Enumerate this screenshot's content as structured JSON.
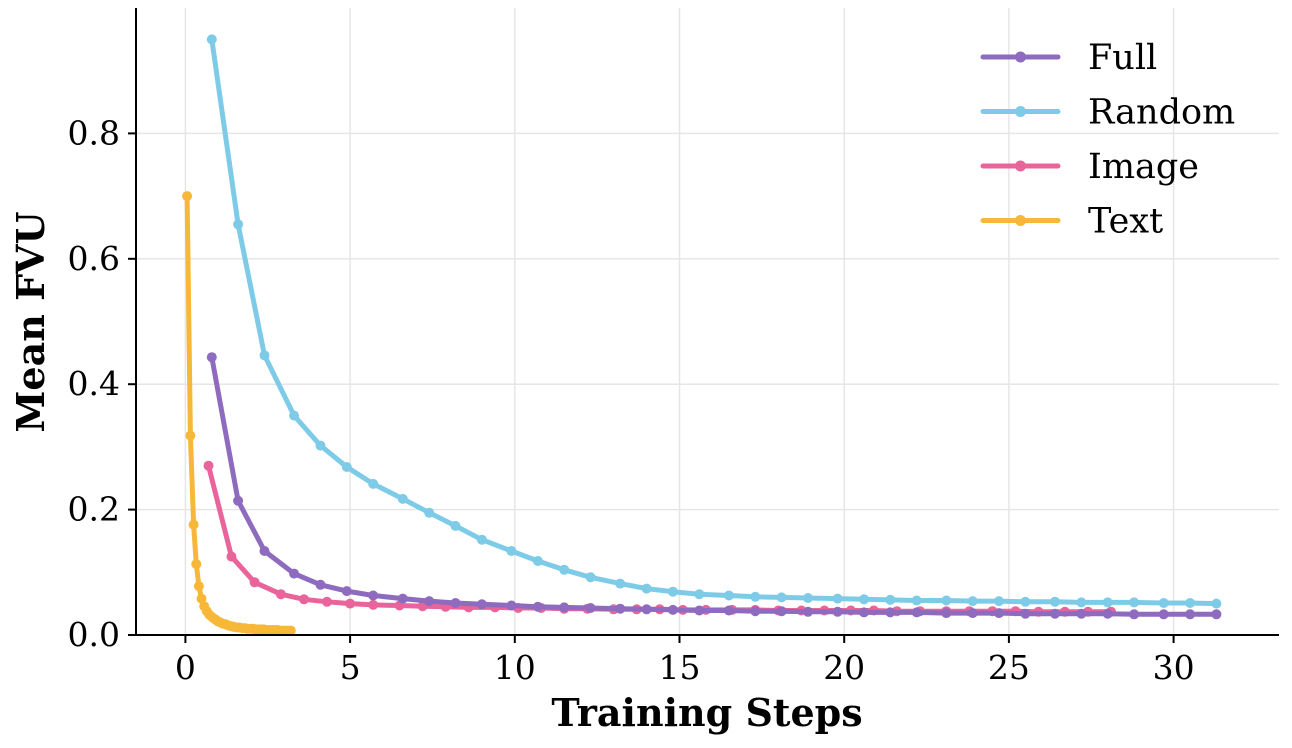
{
  "chart_data": {
    "type": "line",
    "title": "",
    "xlabel": "Training Steps",
    "ylabel": "Mean FVU",
    "xlim": [
      -1.5,
      33.2
    ],
    "ylim": [
      0.0,
      1.0
    ],
    "xticks": [
      0,
      5,
      10,
      15,
      20,
      25,
      30
    ],
    "xtick_labels": [
      "0",
      "5",
      "10",
      "15",
      "20",
      "25",
      "30"
    ],
    "yticks": [
      0.0,
      0.2,
      0.4,
      0.6,
      0.8
    ],
    "ytick_labels": [
      "0.0",
      "0.2",
      "0.4",
      "0.6",
      "0.8"
    ],
    "grid": true,
    "legend_position": "top-right",
    "series": [
      {
        "name": "Full",
        "color": "#8e6bbf",
        "x": [
          0.8,
          1.6,
          2.4,
          3.3,
          4.1,
          4.9,
          5.7,
          6.6,
          7.4,
          8.2,
          9.0,
          9.9,
          10.7,
          11.5,
          12.3,
          13.2,
          14.0,
          14.8,
          15.6,
          16.5,
          17.3,
          18.1,
          18.9,
          19.8,
          20.6,
          21.4,
          22.2,
          23.1,
          23.9,
          24.7,
          25.5,
          26.4,
          27.2,
          28.0,
          28.8,
          29.7,
          30.5,
          31.3
        ],
        "y": [
          0.443,
          0.214,
          0.134,
          0.098,
          0.08,
          0.07,
          0.063,
          0.058,
          0.054,
          0.051,
          0.049,
          0.047,
          0.045,
          0.044,
          0.043,
          0.042,
          0.041,
          0.04,
          0.039,
          0.039,
          0.038,
          0.038,
          0.037,
          0.037,
          0.036,
          0.036,
          0.036,
          0.035,
          0.035,
          0.035,
          0.034,
          0.034,
          0.034,
          0.034,
          0.033,
          0.033,
          0.033,
          0.033
        ]
      },
      {
        "name": "Random",
        "color": "#7ecbe8",
        "x": [
          0.8,
          1.6,
          2.4,
          3.3,
          4.1,
          4.9,
          5.7,
          6.6,
          7.4,
          8.2,
          9.0,
          9.9,
          10.7,
          11.5,
          12.3,
          13.2,
          14.0,
          14.8,
          15.6,
          16.5,
          17.3,
          18.1,
          18.9,
          19.8,
          20.6,
          21.4,
          22.2,
          23.1,
          23.9,
          24.7,
          25.5,
          26.4,
          27.2,
          28.0,
          28.8,
          29.7,
          30.5,
          31.3
        ],
        "y": [
          0.95,
          0.655,
          0.446,
          0.35,
          0.302,
          0.268,
          0.241,
          0.217,
          0.195,
          0.174,
          0.152,
          0.134,
          0.118,
          0.104,
          0.092,
          0.082,
          0.074,
          0.069,
          0.065,
          0.063,
          0.061,
          0.06,
          0.059,
          0.058,
          0.057,
          0.056,
          0.055,
          0.055,
          0.054,
          0.054,
          0.053,
          0.053,
          0.052,
          0.052,
          0.052,
          0.051,
          0.051,
          0.05
        ]
      },
      {
        "name": "Image",
        "color": "#e8649a",
        "x": [
          0.7,
          1.4,
          2.1,
          2.9,
          3.6,
          4.3,
          5.0,
          5.7,
          6.5,
          7.2,
          7.9,
          8.6,
          9.4,
          10.1,
          10.8,
          11.5,
          12.2,
          13.0,
          13.7,
          14.4,
          15.1,
          15.8,
          16.6,
          17.3,
          18.0,
          18.7,
          19.4,
          20.2,
          20.9,
          21.6,
          22.3,
          23.1,
          23.8,
          24.5,
          25.2,
          25.9,
          26.7,
          27.4,
          28.1
        ],
        "y": [
          0.27,
          0.125,
          0.084,
          0.065,
          0.057,
          0.053,
          0.05,
          0.048,
          0.047,
          0.046,
          0.045,
          0.044,
          0.044,
          0.043,
          0.043,
          0.042,
          0.042,
          0.041,
          0.041,
          0.041,
          0.04,
          0.04,
          0.04,
          0.04,
          0.039,
          0.039,
          0.039,
          0.039,
          0.039,
          0.038,
          0.038,
          0.038,
          0.038,
          0.038,
          0.038,
          0.037,
          0.037,
          0.037,
          0.037
        ]
      },
      {
        "name": "Text",
        "color": "#f7b738",
        "x": [
          0.05,
          0.15,
          0.25,
          0.33,
          0.41,
          0.49,
          0.57,
          0.65,
          0.73,
          0.82,
          0.9,
          0.98,
          1.06,
          1.14,
          1.23,
          1.31,
          1.39,
          1.47,
          1.56,
          1.64,
          1.72,
          1.8,
          1.88,
          1.97,
          2.05,
          2.13,
          2.21,
          2.3,
          2.38,
          2.46,
          2.54,
          2.62,
          2.71,
          2.79,
          2.87,
          2.95,
          3.03,
          3.12,
          3.2
        ],
        "y": [
          0.7,
          0.318,
          0.176,
          0.113,
          0.078,
          0.058,
          0.046,
          0.038,
          0.032,
          0.028,
          0.025,
          0.022,
          0.02,
          0.018,
          0.017,
          0.015,
          0.014,
          0.013,
          0.012,
          0.012,
          0.011,
          0.011,
          0.01,
          0.01,
          0.01,
          0.009,
          0.009,
          0.009,
          0.009,
          0.008,
          0.008,
          0.008,
          0.008,
          0.008,
          0.007,
          0.007,
          0.007,
          0.007,
          0.007
        ]
      }
    ]
  }
}
